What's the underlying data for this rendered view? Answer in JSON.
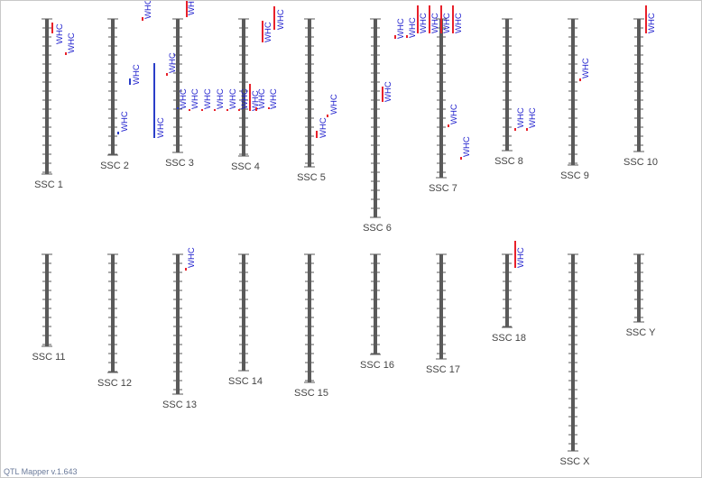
{
  "app": {
    "version_text": "QTL Mapper v.1.643"
  },
  "colors": {
    "chromosome": "#5a5a5a",
    "tick": "#5a5a5a",
    "qtl_red": "#e8202a",
    "qtl_blue": "#2a3ec8",
    "label_blue": "#1a1acc"
  },
  "chromosomes": [
    {
      "label": "SSC 1"
    },
    {
      "label": "SSC 2"
    },
    {
      "label": "SSC 3"
    },
    {
      "label": "SSC 4"
    },
    {
      "label": "SSC 5"
    },
    {
      "label": "SSC 6"
    },
    {
      "label": "SSC 7"
    },
    {
      "label": "SSC 8"
    },
    {
      "label": "SSC 9"
    },
    {
      "label": "SSC 10"
    },
    {
      "label": "SSC 11"
    },
    {
      "label": "SSC 12"
    },
    {
      "label": "SSC 13"
    },
    {
      "label": "SSC 14"
    },
    {
      "label": "SSC 15"
    },
    {
      "label": "SSC 16"
    },
    {
      "label": "SSC 17"
    },
    {
      "label": "SSC 18"
    },
    {
      "label": "SSC X"
    },
    {
      "label": "SSC Y"
    }
  ],
  "qtls": [
    {
      "chr": 0,
      "label": "WHC",
      "color": "red"
    },
    {
      "chr": 0,
      "label": "WHC",
      "color": "red"
    },
    {
      "chr": 1,
      "label": "WHC",
      "color": "red"
    },
    {
      "chr": 1,
      "label": "WHC",
      "color": "blue"
    },
    {
      "chr": 1,
      "label": "WHC",
      "color": "blue"
    },
    {
      "chr": 2,
      "label": "WHC",
      "color": "red"
    },
    {
      "chr": 2,
      "label": "WHC",
      "color": "red"
    },
    {
      "chr": 2,
      "label": "WHC",
      "color": "blue"
    },
    {
      "chr": 2,
      "label": "WHC",
      "color": "blue"
    },
    {
      "chr": 2,
      "label": "WHC",
      "color": "red"
    },
    {
      "chr": 2,
      "label": "WHC",
      "color": "red"
    },
    {
      "chr": 2,
      "label": "WHC",
      "color": "red"
    },
    {
      "chr": 2,
      "label": "WHC",
      "color": "red"
    },
    {
      "chr": 2,
      "label": "WHC",
      "color": "red"
    },
    {
      "chr": 3,
      "label": "WHC",
      "color": "red"
    },
    {
      "chr": 3,
      "label": "WHC",
      "color": "red"
    },
    {
      "chr": 3,
      "label": "WHC",
      "color": "red"
    },
    {
      "chr": 3,
      "label": "WHC",
      "color": "red"
    },
    {
      "chr": 3,
      "label": "WHC",
      "color": "red"
    },
    {
      "chr": 4,
      "label": "WHC",
      "color": "red"
    },
    {
      "chr": 4,
      "label": "WHC",
      "color": "red"
    },
    {
      "chr": 5,
      "label": "WHC",
      "color": "red"
    },
    {
      "chr": 6,
      "label": "WHC",
      "color": "red"
    },
    {
      "chr": 6,
      "label": "WHC",
      "color": "red"
    },
    {
      "chr": 6,
      "label": "WHC",
      "color": "red"
    },
    {
      "chr": 6,
      "label": "WHC",
      "color": "red"
    },
    {
      "chr": 6,
      "label": "WHC",
      "color": "red"
    },
    {
      "chr": 6,
      "label": "WHC",
      "color": "red"
    },
    {
      "chr": 6,
      "label": "WHC",
      "color": "red"
    },
    {
      "chr": 7,
      "label": "WHC",
      "color": "red"
    },
    {
      "chr": 7,
      "label": "WHC",
      "color": "red"
    },
    {
      "chr": 8,
      "label": "WHC",
      "color": "red"
    },
    {
      "chr": 9,
      "label": "WHC",
      "color": "red"
    },
    {
      "chr": 12,
      "label": "WHC",
      "color": "red"
    },
    {
      "chr": 17,
      "label": "WHC",
      "color": "red"
    },
    {
      "chr": 17,
      "label": "WHC",
      "color": "red"
    }
  ]
}
